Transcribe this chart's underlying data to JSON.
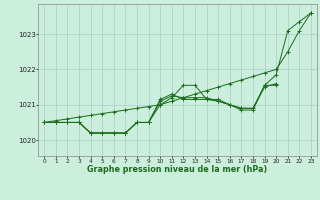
{
  "title": "Graphe pression niveau de la mer (hPa)",
  "background_color": "#cceedd",
  "grid_color": "#aacccc",
  "line_color": "#1a6e1a",
  "xlim": [
    -0.5,
    23.5
  ],
  "ylim": [
    1019.55,
    1023.85
  ],
  "yticks": [
    1020,
    1021,
    1022,
    1023
  ],
  "xtick_labels": [
    "0",
    "1",
    "2",
    "3",
    "4",
    "5",
    "6",
    "7",
    "8",
    "9",
    "10",
    "11",
    "12",
    "13",
    "14",
    "15",
    "16",
    "17",
    "18",
    "19",
    "20",
    "21",
    "22",
    "23"
  ],
  "series": [
    {
      "comment": "line going straight from 0->23, 1020.5->1023.6",
      "x": [
        0,
        1,
        2,
        3,
        4,
        5,
        6,
        7,
        8,
        9,
        10,
        11,
        12,
        13,
        14,
        15,
        16,
        17,
        18,
        19,
        20,
        21,
        22,
        23
      ],
      "y": [
        1020.5,
        1020.55,
        1020.6,
        1020.65,
        1020.7,
        1020.75,
        1020.8,
        1020.85,
        1020.9,
        1020.95,
        1021.0,
        1021.1,
        1021.2,
        1021.3,
        1021.4,
        1021.5,
        1021.6,
        1021.7,
        1021.8,
        1021.9,
        1022.0,
        1022.5,
        1023.1,
        1023.6
      ]
    },
    {
      "x": [
        0,
        1,
        2,
        3,
        4,
        5,
        6,
        7,
        8,
        9,
        10,
        11,
        12,
        13,
        14,
        15,
        16,
        17,
        18,
        19,
        20,
        21,
        22,
        23
      ],
      "y": [
        1020.5,
        1020.5,
        1020.5,
        1020.5,
        1020.2,
        1020.2,
        1020.2,
        1020.2,
        1020.5,
        1020.5,
        1021.0,
        1021.2,
        1021.55,
        1021.55,
        1021.15,
        1021.15,
        1021.0,
        1020.9,
        1020.9,
        1021.55,
        1021.85,
        1023.1,
        1023.35,
        1023.6
      ]
    },
    {
      "x": [
        0,
        1,
        2,
        3,
        4,
        5,
        6,
        7,
        8,
        9,
        10,
        11,
        12,
        13,
        14,
        15,
        16,
        17,
        18,
        19,
        20
      ],
      "y": [
        1020.5,
        1020.5,
        1020.5,
        1020.5,
        1020.2,
        1020.2,
        1020.2,
        1020.2,
        1020.5,
        1020.5,
        1021.1,
        1021.25,
        1021.2,
        1021.2,
        1021.2,
        1021.1,
        1021.0,
        1020.9,
        1020.9,
        1021.5,
        1021.6
      ]
    },
    {
      "x": [
        0,
        1,
        2,
        3,
        4,
        5,
        6,
        7,
        8,
        9,
        10,
        11,
        12,
        13,
        14,
        15,
        16,
        17,
        18,
        19,
        20
      ],
      "y": [
        1020.5,
        1020.5,
        1020.5,
        1020.5,
        1020.2,
        1020.2,
        1020.2,
        1020.2,
        1020.5,
        1020.5,
        1021.15,
        1021.3,
        1021.15,
        1021.15,
        1021.15,
        1021.1,
        1021.0,
        1020.85,
        1020.85,
        1021.55,
        1021.55
      ]
    }
  ]
}
